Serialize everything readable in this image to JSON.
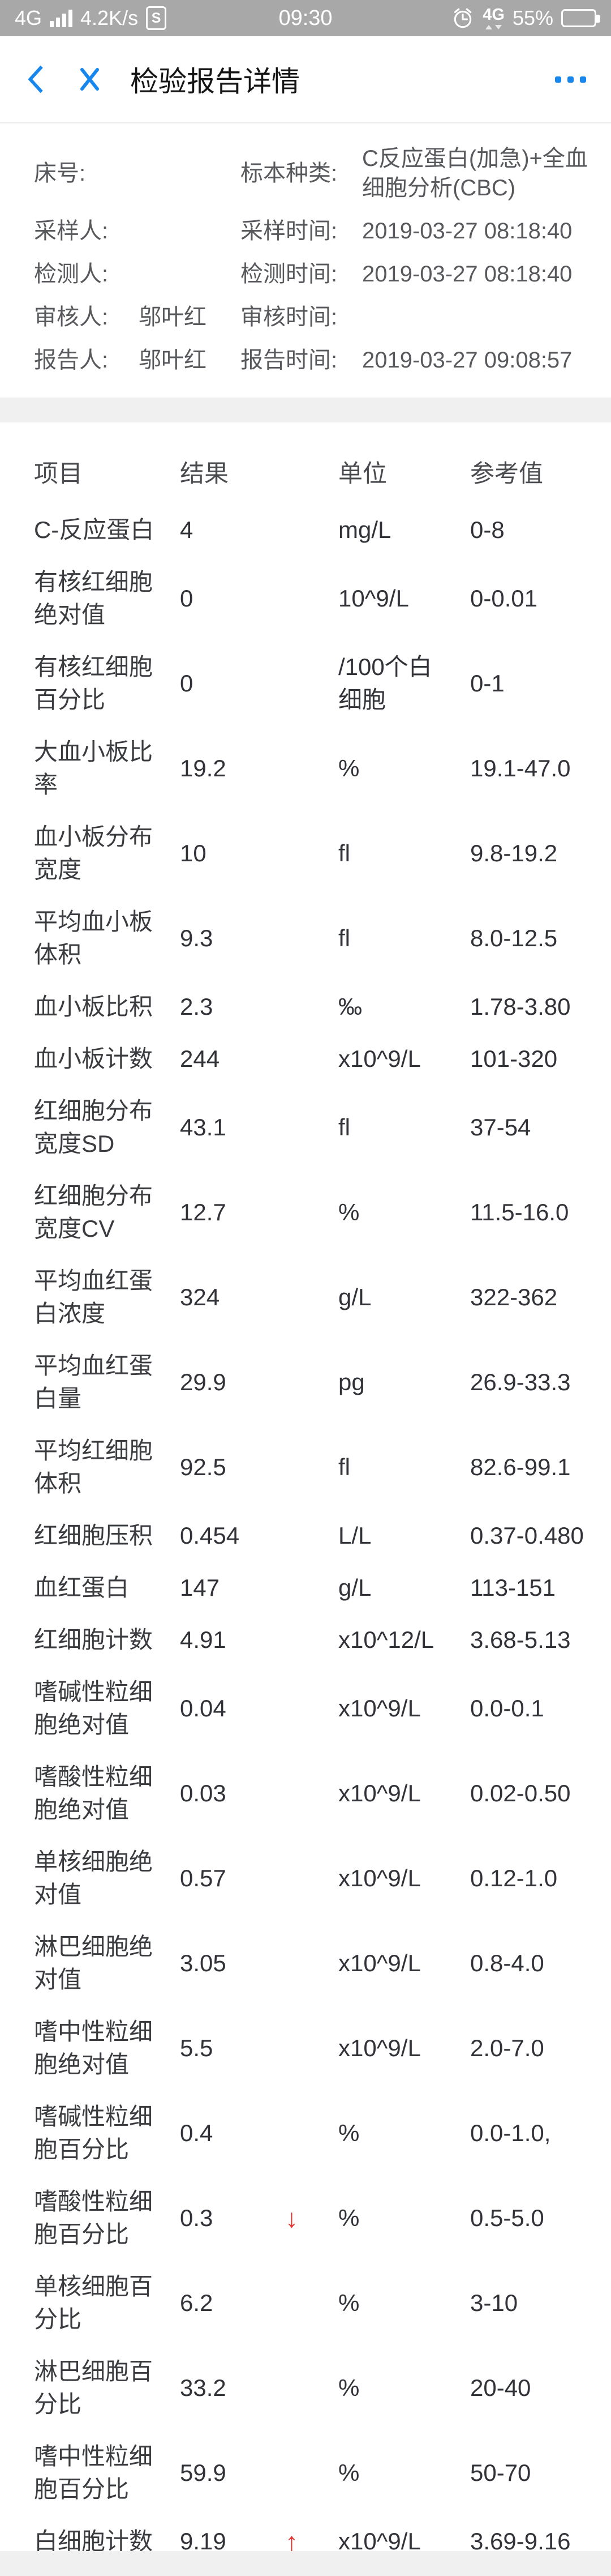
{
  "status_bar": {
    "network": "4G",
    "speed": "4.2K/s",
    "sim_badge": "S",
    "time": "09:30",
    "data_badge": "4G",
    "battery_percent": "55%"
  },
  "nav": {
    "title": "检验报告详情"
  },
  "info": {
    "rows": [
      {
        "label_left": "床号:",
        "value_left": "",
        "label_right": "标本种类:",
        "value_right": "C反应蛋白(加急)+全血细胞分析(CBC)"
      },
      {
        "label_left": "采样人:",
        "value_left": "",
        "label_right": "采样时间:",
        "value_right": "2019-03-27 08:18:40"
      },
      {
        "label_left": "检测人:",
        "value_left": "",
        "label_right": "检测时间:",
        "value_right": "2019-03-27 08:18:40"
      },
      {
        "label_left": "审核人:",
        "value_left": "邬叶红",
        "label_right": "审核时间:",
        "value_right": ""
      },
      {
        "label_left": "报告人:",
        "value_left": "邬叶红",
        "label_right": "报告时间:",
        "value_right": "2019-03-27 09:08:57"
      }
    ]
  },
  "table": {
    "headers": {
      "item": "项目",
      "result": "结果",
      "unit": "单位",
      "reference": "参考值"
    },
    "rows": [
      {
        "item": "C-反应蛋白",
        "result": "4",
        "flag": "",
        "unit": "mg/L",
        "reference": "0-8"
      },
      {
        "item": "有核红细胞绝对值",
        "result": "0",
        "flag": "",
        "unit": "10^9/L",
        "reference": "0-0.01"
      },
      {
        "item": "有核红细胞百分比",
        "result": "0",
        "flag": "",
        "unit": "/100个白细胞",
        "reference": "0-1"
      },
      {
        "item": "大血小板比率",
        "result": "19.2",
        "flag": "",
        "unit": "%",
        "reference": "19.1-47.0"
      },
      {
        "item": "血小板分布宽度",
        "result": "10",
        "flag": "",
        "unit": "fl",
        "reference": "9.8-19.2"
      },
      {
        "item": "平均血小板体积",
        "result": "9.3",
        "flag": "",
        "unit": "fl",
        "reference": "8.0-12.5"
      },
      {
        "item": "血小板比积",
        "result": "2.3",
        "flag": "",
        "unit": "‰",
        "reference": "1.78-3.80"
      },
      {
        "item": "血小板计数",
        "result": "244",
        "flag": "",
        "unit": "x10^9/L",
        "reference": "101-320"
      },
      {
        "item": "红细胞分布宽度SD",
        "result": "43.1",
        "flag": "",
        "unit": "fl",
        "reference": "37-54"
      },
      {
        "item": "红细胞分布宽度CV",
        "result": "12.7",
        "flag": "",
        "unit": "%",
        "reference": "11.5-16.0"
      },
      {
        "item": "平均血红蛋白浓度",
        "result": "324",
        "flag": "",
        "unit": "g/L",
        "reference": "322-362"
      },
      {
        "item": "平均血红蛋白量",
        "result": "29.9",
        "flag": "",
        "unit": "pg",
        "reference": "26.9-33.3"
      },
      {
        "item": "平均红细胞体积",
        "result": "92.5",
        "flag": "",
        "unit": "fl",
        "reference": "82.6-99.1"
      },
      {
        "item": "红细胞压积",
        "result": "0.454",
        "flag": "",
        "unit": "L/L",
        "reference": "0.37-0.480"
      },
      {
        "item": "血红蛋白",
        "result": "147",
        "flag": "",
        "unit": "g/L",
        "reference": "113-151"
      },
      {
        "item": "红细胞计数",
        "result": "4.91",
        "flag": "",
        "unit": "x10^12/L",
        "reference": "3.68-5.13"
      },
      {
        "item": "嗜碱性粒细胞绝对值",
        "result": "0.04",
        "flag": "",
        "unit": "x10^9/L",
        "reference": "0.0-0.1"
      },
      {
        "item": "嗜酸性粒细胞绝对值",
        "result": "0.03",
        "flag": "",
        "unit": "x10^9/L",
        "reference": "0.02-0.50"
      },
      {
        "item": "单核细胞绝对值",
        "result": "0.57",
        "flag": "",
        "unit": "x10^9/L",
        "reference": "0.12-1.0"
      },
      {
        "item": "淋巴细胞绝对值",
        "result": "3.05",
        "flag": "",
        "unit": "x10^9/L",
        "reference": "0.8-4.0"
      },
      {
        "item": "嗜中性粒细胞绝对值",
        "result": "5.5",
        "flag": "",
        "unit": "x10^9/L",
        "reference": "2.0-7.0"
      },
      {
        "item": "嗜碱性粒细胞百分比",
        "result": "0.4",
        "flag": "",
        "unit": "%",
        "reference": "0.0-1.0,"
      },
      {
        "item": "嗜酸性粒细胞百分比",
        "result": "0.3",
        "flag": "↓",
        "unit": "%",
        "reference": "0.5-5.0"
      },
      {
        "item": "单核细胞百分比",
        "result": "6.2",
        "flag": "",
        "unit": "%",
        "reference": "3-10"
      },
      {
        "item": "淋巴细胞百分比",
        "result": "33.2",
        "flag": "",
        "unit": "%",
        "reference": "20-40"
      },
      {
        "item": "嗜中性粒细胞百分比",
        "result": "59.9",
        "flag": "",
        "unit": "%",
        "reference": "50-70"
      },
      {
        "item": "白细胞计数",
        "result": "9.19",
        "flag": "↑",
        "unit": "x10^9/L",
        "reference": "3.69-9.16"
      }
    ]
  },
  "colors": {
    "accent_blue": "#1787ee",
    "flag_red": "#e5322e",
    "status_bar_bg": "#a8a8a8",
    "divider_gray": "#f0f0f1"
  }
}
